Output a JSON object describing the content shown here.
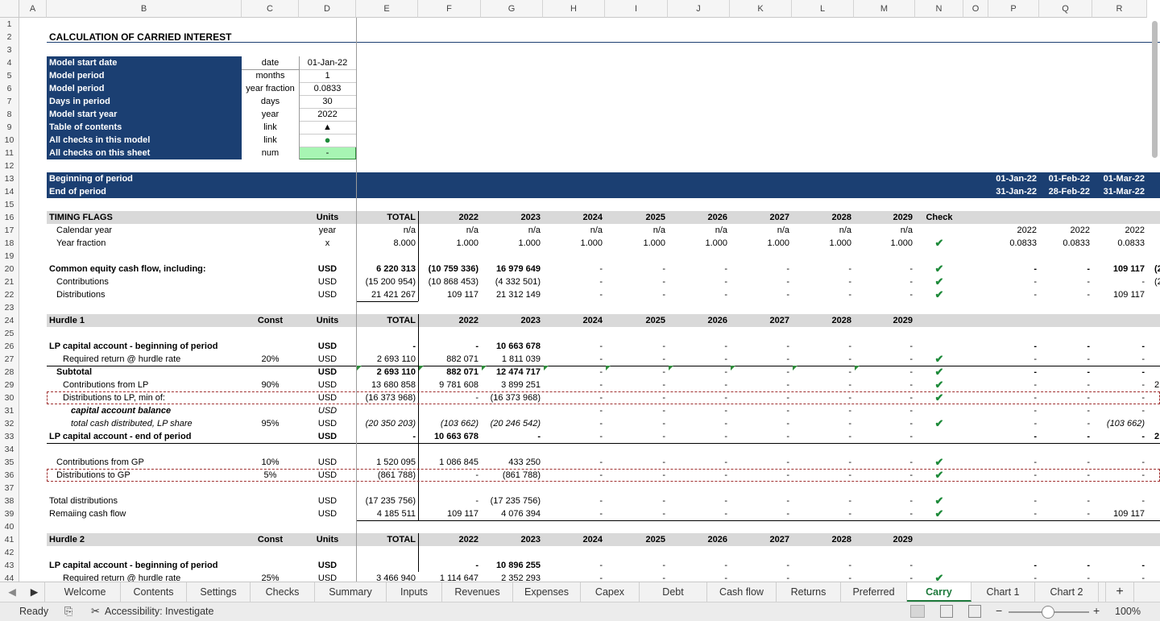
{
  "columns": [
    "A",
    "B",
    "C",
    "D",
    "E",
    "F",
    "G",
    "H",
    "I",
    "J",
    "K",
    "L",
    "M",
    "N",
    "O",
    "P",
    "Q",
    "R"
  ],
  "rows": [
    "1",
    "2",
    "3",
    "4",
    "5",
    "6",
    "7",
    "8",
    "9",
    "10",
    "11",
    "12",
    "13",
    "14",
    "15",
    "16",
    "17",
    "18",
    "19",
    "20",
    "21",
    "22",
    "23",
    "24",
    "25",
    "26",
    "27",
    "28",
    "29",
    "30",
    "31",
    "32",
    "33",
    "34",
    "35",
    "36",
    "37",
    "38",
    "39",
    "40",
    "41",
    "42",
    "43",
    "44"
  ],
  "title": "CALCULATION OF CARRIED INTEREST",
  "inputs": [
    {
      "label": "Model start date",
      "unit": "date",
      "value": "01-Jan-22"
    },
    {
      "label": "Model period",
      "unit": "months",
      "value": "1"
    },
    {
      "label": "Model period",
      "unit": "year fraction",
      "value": "0.0833"
    },
    {
      "label": "Days in period",
      "unit": "days",
      "value": "30"
    },
    {
      "label": "Model start year",
      "unit": "year",
      "value": "2022"
    },
    {
      "label": "Table of contents",
      "unit": "link",
      "value": "▲"
    },
    {
      "label": "All checks in this model",
      "unit": "link",
      "value": "●"
    },
    {
      "label": "All checks on this sheet",
      "unit": "num",
      "value": "-"
    }
  ],
  "period": {
    "begin_label": "Beginning of period",
    "end_label": "End of period",
    "begin": [
      "01-Jan-22",
      "01-Feb-22",
      "01-Mar-22"
    ],
    "end": [
      "31-Jan-22",
      "28-Feb-22",
      "31-Mar-22"
    ]
  },
  "headers": {
    "units": "Units",
    "total": "TOTAL",
    "const": "Const",
    "check": "Check",
    "years": [
      "2022",
      "2023",
      "2024",
      "2025",
      "2026",
      "2027",
      "2028",
      "2029"
    ]
  },
  "timing": {
    "title": "TIMING FLAGS",
    "rows": [
      {
        "label": "Calendar year",
        "unit": "year",
        "total": "n/a",
        "years": [
          "n/a",
          "n/a",
          "n/a",
          "n/a",
          "n/a",
          "n/a",
          "n/a",
          "n/a"
        ],
        "check": "",
        "pqr": [
          "2022",
          "2022",
          "2022"
        ]
      },
      {
        "label": "Year fraction",
        "unit": "x",
        "total": "8.000",
        "years": [
          "1.000",
          "1.000",
          "1.000",
          "1.000",
          "1.000",
          "1.000",
          "1.000",
          "1.000"
        ],
        "check": "✔",
        "pqr": [
          "0.0833",
          "0.0833",
          "0.0833"
        ]
      }
    ]
  },
  "equity": [
    {
      "label": "Common equity cash flow, including:",
      "unit": "USD",
      "total": "6 220 313",
      "years": [
        "(10 759 336)",
        "16 979 649",
        "-",
        "-",
        "-",
        "-",
        "-",
        "-"
      ],
      "check": "✔",
      "pqr": [
        "-",
        "-",
        "109 117"
      ],
      "s": "(2"
    },
    {
      "label": "Contributions",
      "unit": "USD",
      "total": "(15 200 954)",
      "years": [
        "(10 868 453)",
        "(4 332 501)",
        "-",
        "-",
        "-",
        "-",
        "-",
        "-"
      ],
      "check": "✔",
      "pqr": [
        "-",
        "-",
        "-"
      ],
      "s": "(2"
    },
    {
      "label": "Distributions",
      "unit": "USD",
      "total": "21 421 267",
      "years": [
        "109 117",
        "21 312 149",
        "-",
        "-",
        "-",
        "-",
        "-",
        "-"
      ],
      "check": "✔",
      "pqr": [
        "-",
        "-",
        "109 117"
      ],
      "s": ""
    }
  ],
  "hurdle1": {
    "title": "Hurdle 1",
    "rows": [
      {
        "label": "LP capital account - beginning of period",
        "const": "",
        "unit": "USD",
        "total": "-",
        "years": [
          "-",
          "10 663 678",
          "-",
          "-",
          "-",
          "-",
          "-",
          "-"
        ],
        "check": "",
        "pqr": [
          "-",
          "-",
          "-"
        ],
        "s": ""
      },
      {
        "label": "Required return @ hurdle rate",
        "const": "20%",
        "unit": "USD",
        "total": "2 693 110",
        "years": [
          "882 071",
          "1 811 039",
          "-",
          "-",
          "-",
          "-",
          "-",
          "-"
        ],
        "check": "✔",
        "pqr": [
          "-",
          "-",
          "-"
        ],
        "s": ""
      },
      {
        "label": "Subtotal",
        "const": "",
        "unit": "USD",
        "total": "2 693 110",
        "years": [
          "882 071",
          "12 474 717",
          "-",
          "-",
          "-",
          "-",
          "-",
          "-"
        ],
        "check": "✔",
        "pqr": [
          "-",
          "-",
          "-"
        ],
        "s": ""
      },
      {
        "label": "Contributions from LP",
        "const": "90%",
        "unit": "USD",
        "total": "13 680 858",
        "years": [
          "9 781 608",
          "3 899 251",
          "-",
          "-",
          "-",
          "-",
          "-",
          "-"
        ],
        "check": "✔",
        "pqr": [
          "-",
          "-",
          "-"
        ],
        "s": "2"
      },
      {
        "label": "Distributions to LP, min of:",
        "const": "",
        "unit": "USD",
        "total": "(16 373 968)",
        "years": [
          "-",
          "(16 373 968)",
          "-",
          "-",
          "-",
          "-",
          "-",
          "-"
        ],
        "check": "✔",
        "pqr": [
          "-",
          "-",
          "-"
        ],
        "s": ""
      },
      {
        "label": "capital account balance",
        "const": "",
        "unit": "USD",
        "total": "",
        "years": [
          "",
          "",
          "-",
          "-",
          "-",
          "-",
          "-",
          "-"
        ],
        "check": "",
        "pqr": [
          "-",
          "-",
          "-"
        ],
        "s": ""
      },
      {
        "label": "total cash distributed, LP share",
        "const": "95%",
        "unit": "USD",
        "total": "(20 350 203)",
        "years": [
          "(103 662)",
          "(20 246 542)",
          "-",
          "-",
          "-",
          "-",
          "-",
          "-"
        ],
        "check": "✔",
        "pqr": [
          "-",
          "-",
          "(103 662)"
        ],
        "s": ""
      },
      {
        "label": "LP capital account - end of period",
        "const": "",
        "unit": "USD",
        "total": "-",
        "years": [
          "10 663 678",
          "-",
          "-",
          "-",
          "-",
          "-",
          "-",
          "-"
        ],
        "check": "",
        "pqr": [
          "-",
          "-",
          "-"
        ],
        "s": "2"
      },
      {
        "label": "Contributions from GP",
        "const": "10%",
        "unit": "USD",
        "total": "1 520 095",
        "years": [
          "1 086 845",
          "433 250",
          "-",
          "-",
          "-",
          "-",
          "-",
          "-"
        ],
        "check": "✔",
        "pqr": [
          "-",
          "-",
          "-"
        ],
        "s": ""
      },
      {
        "label": "Distributions to GP",
        "const": "5%",
        "unit": "USD",
        "total": "(861 788)",
        "years": [
          "-",
          "(861 788)",
          "-",
          "-",
          "-",
          "-",
          "-",
          "-"
        ],
        "check": "✔",
        "pqr": [
          "-",
          "-",
          "-"
        ],
        "s": ""
      },
      {
        "label": "Total distributions",
        "const": "",
        "unit": "USD",
        "total": "(17 235 756)",
        "years": [
          "-",
          "(17 235 756)",
          "-",
          "-",
          "-",
          "-",
          "-",
          "-"
        ],
        "check": "✔",
        "pqr": [
          "-",
          "-",
          "-"
        ],
        "s": ""
      },
      {
        "label": "Remaiing cash flow",
        "const": "",
        "unit": "USD",
        "total": "4 185 511",
        "years": [
          "109 117",
          "4 076 394",
          "-",
          "-",
          "-",
          "-",
          "-",
          "-"
        ],
        "check": "✔",
        "pqr": [
          "-",
          "-",
          "109 117"
        ],
        "s": ""
      }
    ]
  },
  "hurdle2": {
    "title": "Hurdle 2",
    "rows": [
      {
        "label": "LP capital account - beginning of period",
        "const": "",
        "unit": "USD",
        "total": "",
        "years": [
          "-",
          "10 896 255",
          "-",
          "-",
          "-",
          "-",
          "-",
          "-"
        ],
        "check": "",
        "pqr": [
          "-",
          "-",
          "-"
        ],
        "s": ""
      },
      {
        "label": "Required return @ hurdle rate",
        "const": "25%",
        "unit": "USD",
        "total": "3 466 940",
        "years": [
          "1 114 647",
          "2 352 293",
          "-",
          "-",
          "-",
          "-",
          "-",
          "-"
        ],
        "check": "✔",
        "pqr": [
          "-",
          "-",
          "-"
        ],
        "s": ""
      }
    ]
  },
  "tabs": [
    "Welcome",
    "Contents",
    "Settings",
    "Checks",
    "Summary",
    "Inputs",
    "Revenues",
    "Expenses",
    "Capex",
    "Debt",
    "Cash flow",
    "Returns",
    "Preferred",
    "Carry",
    "Chart 1",
    "Chart 2"
  ],
  "active_tab": "Carry",
  "status": {
    "ready": "Ready",
    "accessibility": "Accessibility: Investigate",
    "zoom": "100%"
  },
  "colors": {
    "navy": "#1b3f72",
    "grey_band": "#d9d9d9",
    "check_green": "#1e8a3a",
    "active_tab": "#1e7a3c"
  }
}
